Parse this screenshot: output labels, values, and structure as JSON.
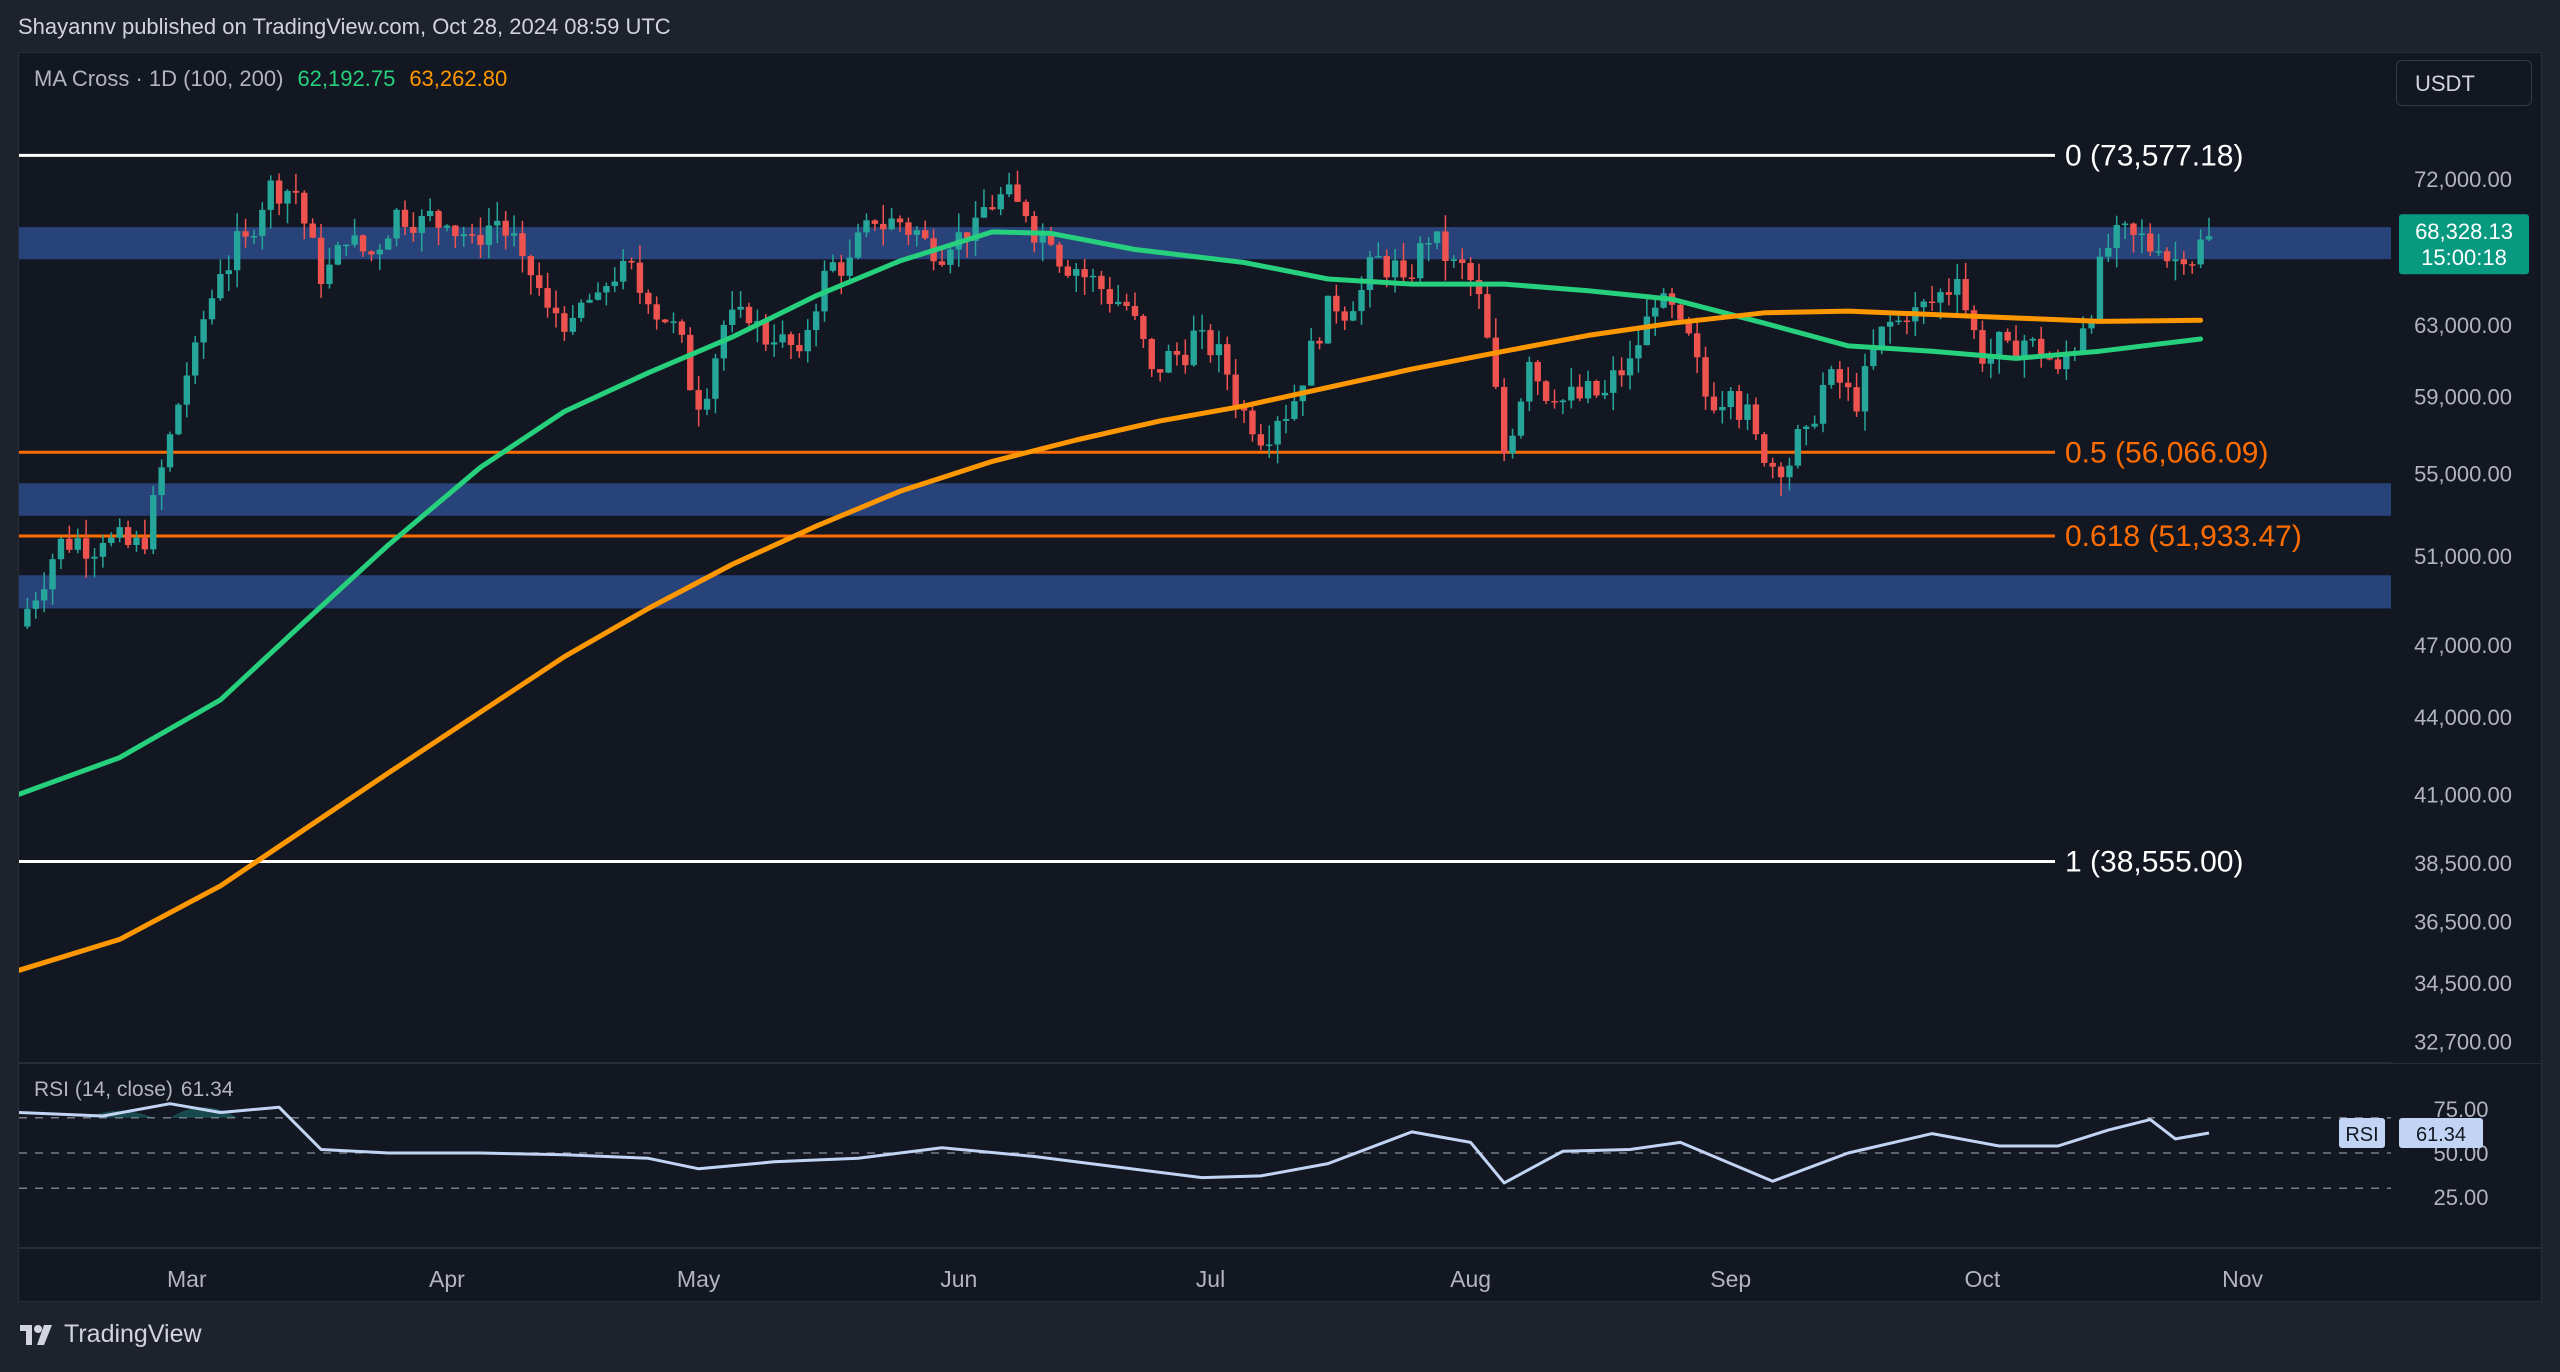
{
  "header": {
    "published_text": "Shayannv published on TradingView.com, Oct 28, 2024 08:59 UTC"
  },
  "legend": {
    "indicator": "MA Cross · 1D (100, 200)",
    "ma100_value": "62,192.75",
    "ma200_value": "63,262.80"
  },
  "currency_button": "USDT",
  "price_badge": {
    "price": "68,328.13",
    "countdown": "15:00:18"
  },
  "rsi": {
    "label": "RSI (14, close)",
    "value": "61.34",
    "badge_label": "RSI",
    "badge_value": "61.34"
  },
  "footer": {
    "brand": "TradingView"
  },
  "colors": {
    "background": "#131722",
    "up_candle": "#26a69a",
    "down_candle": "#ef5350",
    "ma100": "#26d07c",
    "ma200": "#ff9800",
    "zone": "#2d4a8a",
    "fib_orange": "#ff6d00",
    "rsi_line": "#c2d4f4"
  },
  "chart_data": [
    {
      "type": "line",
      "title": "MA Cross · 1D (100, 200)",
      "y_axis_labels": [
        "72,000.00",
        "63,000.00",
        "59,000.00",
        "55,000.00",
        "51,000.00",
        "47,000.00",
        "44,000.00",
        "41,000.00",
        "38,500.00",
        "36,500.00",
        "34,500.00",
        "32,700.00"
      ],
      "y_axis_scale": "log",
      "x_axis_labels": [
        "Mar",
        "Apr",
        "May",
        "Jun",
        "Jul",
        "Aug",
        "Sep",
        "Oct",
        "Nov"
      ],
      "last_price": 68328.13,
      "fib_levels": [
        {
          "label": "0 (73,577.18)",
          "value": 73577.18,
          "color": "#ffffff"
        },
        {
          "label": "0.5 (56,066.09)",
          "value": 56066.09,
          "color": "#ff6d00"
        },
        {
          "label": "0.618 (51,933.47)",
          "value": 51933.47,
          "color": "#ff6d00"
        },
        {
          "label": "1 (38,555.00)",
          "value": 38555.0,
          "color": "#ffffff"
        }
      ],
      "zones": [
        {
          "low": 66900,
          "high": 68900
        },
        {
          "low": 52900,
          "high": 54500
        },
        {
          "low": 48600,
          "high": 50100
        }
      ],
      "series": [
        {
          "name": "MA 100",
          "color": "#26d07c",
          "x": [
            "2024-02-10",
            "2024-02-22",
            "2024-03-05",
            "2024-03-15",
            "2024-03-25",
            "2024-04-05",
            "2024-04-15",
            "2024-04-25",
            "2024-05-05",
            "2024-05-15",
            "2024-05-25",
            "2024-06-05",
            "2024-06-12",
            "2024-06-22",
            "2024-07-05",
            "2024-07-15",
            "2024-07-25",
            "2024-08-05",
            "2024-08-15",
            "2024-08-25",
            "2024-09-05",
            "2024-09-15",
            "2024-09-25",
            "2024-10-05",
            "2024-10-15",
            "2024-10-27"
          ],
          "y": [
            41000,
            42400,
            44700,
            48000,
            51500,
            55300,
            58200,
            60300,
            62300,
            64700,
            66800,
            68600,
            68500,
            67500,
            66700,
            65700,
            65400,
            65400,
            65000,
            64500,
            63100,
            61800,
            61500,
            61100,
            61500,
            62193
          ]
        },
        {
          "name": "MA 200",
          "color": "#ff9800",
          "x": [
            "2024-02-10",
            "2024-02-22",
            "2024-03-05",
            "2024-03-15",
            "2024-03-25",
            "2024-04-05",
            "2024-04-15",
            "2024-04-25",
            "2024-05-05",
            "2024-05-15",
            "2024-05-25",
            "2024-06-05",
            "2024-06-15",
            "2024-06-25",
            "2024-07-05",
            "2024-07-15",
            "2024-07-25",
            "2024-08-05",
            "2024-08-15",
            "2024-08-25",
            "2024-09-05",
            "2024-09-15",
            "2024-09-25",
            "2024-10-05",
            "2024-10-15",
            "2024-10-27"
          ],
          "y": [
            34900,
            35900,
            37700,
            39700,
            41800,
            44200,
            46500,
            48600,
            50600,
            52400,
            54100,
            55600,
            56700,
            57700,
            58500,
            59500,
            60500,
            61500,
            62400,
            63100,
            63700,
            63800,
            63600,
            63400,
            63200,
            63263
          ]
        }
      ],
      "candles_close": {
        "x": [
          "2024-02-10",
          "2024-02-15",
          "2024-02-20",
          "2024-02-25",
          "2024-02-28",
          "2024-03-02",
          "2024-03-05",
          "2024-03-08",
          "2024-03-11",
          "2024-03-14",
          "2024-03-17",
          "2024-03-20",
          "2024-03-23",
          "2024-03-26",
          "2024-03-29",
          "2024-04-01",
          "2024-04-04",
          "2024-04-07",
          "2024-04-10",
          "2024-04-13",
          "2024-04-16",
          "2024-04-19",
          "2024-04-22",
          "2024-04-25",
          "2024-04-28",
          "2024-05-01",
          "2024-05-04",
          "2024-05-07",
          "2024-05-10",
          "2024-05-13",
          "2024-05-16",
          "2024-05-19",
          "2024-05-22",
          "2024-05-25",
          "2024-05-28",
          "2024-05-31",
          "2024-06-03",
          "2024-06-06",
          "2024-06-09",
          "2024-06-12",
          "2024-06-15",
          "2024-06-18",
          "2024-06-21",
          "2024-06-24",
          "2024-06-27",
          "2024-06-30",
          "2024-07-03",
          "2024-07-06",
          "2024-07-09",
          "2024-07-12",
          "2024-07-15",
          "2024-07-18",
          "2024-07-21",
          "2024-07-24",
          "2024-07-27",
          "2024-07-30",
          "2024-08-02",
          "2024-08-05",
          "2024-08-08",
          "2024-08-11",
          "2024-08-14",
          "2024-08-17",
          "2024-08-20",
          "2024-08-23",
          "2024-08-26",
          "2024-08-29",
          "2024-09-01",
          "2024-09-04",
          "2024-09-07",
          "2024-09-10",
          "2024-09-13",
          "2024-09-16",
          "2024-09-19",
          "2024-09-22",
          "2024-09-25",
          "2024-09-28",
          "2024-10-01",
          "2024-10-04",
          "2024-10-07",
          "2024-10-10",
          "2024-10-13",
          "2024-10-16",
          "2024-10-19",
          "2024-10-22",
          "2024-10-25",
          "2024-10-28"
        ],
        "y": [
          47800,
          51800,
          51600,
          51300,
          57000,
          62000,
          66000,
          68300,
          71900,
          71100,
          65400,
          67800,
          67200,
          70000,
          69600,
          69000,
          68400,
          69300,
          67100,
          64000,
          63400,
          64900,
          66800,
          64200,
          63200,
          58300,
          63000,
          63100,
          62000,
          61500,
          66200,
          67000,
          69100,
          69200,
          68200,
          67500,
          69500,
          71000,
          69600,
          67800,
          66300,
          65100,
          64100,
          60500,
          61300,
          62700,
          60200,
          57000,
          57700,
          59600,
          64700,
          63800,
          67100,
          65800,
          67900,
          66900,
          64800,
          56000,
          60900,
          58700,
          58900,
          59200,
          61100,
          64000,
          63300,
          59000,
          59300,
          57000,
          54800,
          57400,
          60500,
          58200,
          62900,
          63200,
          64300,
          65700,
          60800,
          62100,
          62200,
          60500,
          62800,
          67600,
          68400,
          67400,
          66600,
          68328
        ]
      }
    },
    {
      "type": "line",
      "title": "RSI (14, close)",
      "y_axis_labels": [
        "75.00",
        "50.00",
        "25.00"
      ],
      "ylim": [
        0,
        100
      ],
      "bands": [
        70,
        50,
        30
      ],
      "last_value": 61.34,
      "series": [
        {
          "name": "RSI",
          "color": "#c2d4f4",
          "x": [
            "2024-02-10",
            "2024-02-20",
            "2024-02-28",
            "2024-03-05",
            "2024-03-12",
            "2024-03-17",
            "2024-03-25",
            "2024-04-05",
            "2024-04-15",
            "2024-04-25",
            "2024-05-01",
            "2024-05-10",
            "2024-05-20",
            "2024-05-30",
            "2024-06-10",
            "2024-06-20",
            "2024-06-30",
            "2024-07-07",
            "2024-07-15",
            "2024-07-25",
            "2024-08-01",
            "2024-08-05",
            "2024-08-12",
            "2024-08-20",
            "2024-08-26",
            "2024-09-06",
            "2024-09-15",
            "2024-09-25",
            "2024-10-03",
            "2024-10-10",
            "2024-10-16",
            "2024-10-21",
            "2024-10-24",
            "2024-10-28"
          ],
          "y": [
            73,
            71,
            78,
            73,
            76,
            52,
            50,
            50,
            49,
            47,
            41,
            45,
            47,
            53,
            48,
            42,
            36,
            37,
            44,
            62,
            56,
            33,
            51,
            52,
            56,
            34,
            50,
            61,
            54,
            54,
            63,
            69,
            58,
            61.34
          ]
        }
      ]
    }
  ]
}
